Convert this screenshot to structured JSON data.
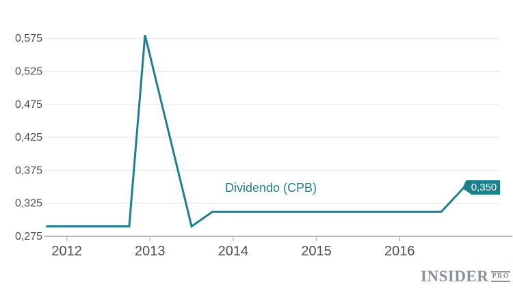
{
  "chart_data": {
    "type": "line",
    "title": "",
    "series_label": "Dividendo (CPB)",
    "series": [
      {
        "name": "Dividendo (CPB)",
        "points": [
          {
            "x": 2011.75,
            "y": 0.29
          },
          {
            "x": 2012.75,
            "y": 0.29
          },
          {
            "x": 2012.94,
            "y": 0.58
          },
          {
            "x": 2013.5,
            "y": 0.29
          },
          {
            "x": 2013.75,
            "y": 0.312
          },
          {
            "x": 2016.5,
            "y": 0.312
          },
          {
            "x": 2016.78,
            "y": 0.35
          }
        ]
      }
    ],
    "xticks": {
      "values": [
        2012,
        2013,
        2014,
        2015,
        2016
      ],
      "labels": [
        "2012",
        "2013",
        "2014",
        "2015",
        "2016"
      ]
    },
    "yticks": {
      "values": [
        0.275,
        0.325,
        0.375,
        0.425,
        0.475,
        0.525,
        0.575
      ],
      "labels": [
        "0,275",
        "0,325",
        "0,375",
        "0,425",
        "0,475",
        "0,525",
        "0,575"
      ]
    },
    "xlim": [
      2011.74,
      2017.33
    ],
    "ylim": [
      0.275,
      0.595
    ],
    "grid": "horizontal",
    "legend_position": "inline-label",
    "annotation": {
      "label": "0,350",
      "x": 2016.78,
      "y": 0.35
    },
    "colors": {
      "line": "#1e7f8c",
      "badge_bg": "#1e7f8c",
      "badge_text": "#ffffff",
      "grid": "#ececec",
      "axis": "#bdbdbd",
      "tick_label": "#4d4d4d"
    }
  },
  "logo": {
    "insider": "INSIDER",
    "pro": "PRO",
    "color": "#8b9299"
  }
}
